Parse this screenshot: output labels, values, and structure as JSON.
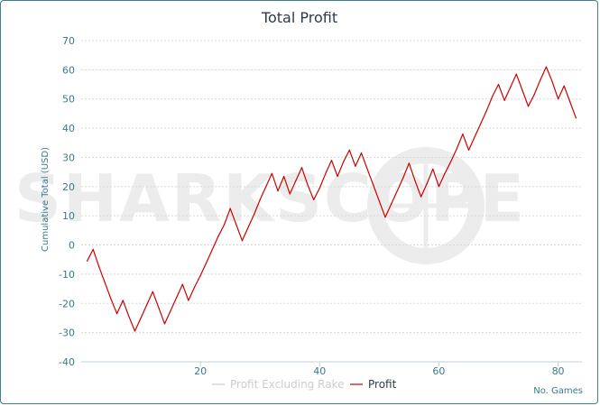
{
  "chart_data": {
    "type": "line",
    "title": "Total Profit",
    "ylabel": "Cumulative Total (USD)",
    "xlabel": "No. Games",
    "ylim": [
      -40,
      70
    ],
    "xlim": [
      0,
      84
    ],
    "yticks": [
      70,
      60,
      50,
      40,
      30,
      20,
      10,
      0,
      -10,
      -20,
      -30,
      -40
    ],
    "xticks": [
      20,
      40,
      60,
      80
    ],
    "grid": true,
    "legend_position": "bottom",
    "watermark": "SHARKSCOPE",
    "series": [
      {
        "name": "Profit Excluding Rake",
        "color": "#cccccc",
        "points": []
      },
      {
        "name": "Profit",
        "color": "#cc0000",
        "points": [
          [
            1,
            -5.5
          ],
          [
            2,
            -1.5
          ],
          [
            3,
            -7.5
          ],
          [
            4,
            -13
          ],
          [
            5,
            -18.5
          ],
          [
            6,
            -23.5
          ],
          [
            7,
            -19
          ],
          [
            8,
            -24.5
          ],
          [
            9,
            -29.5
          ],
          [
            10,
            -25
          ],
          [
            11,
            -20.5
          ],
          [
            12,
            -16
          ],
          [
            13,
            -21.5
          ],
          [
            14,
            -27
          ],
          [
            15,
            -22.5
          ],
          [
            16,
            -18
          ],
          [
            17,
            -13.5
          ],
          [
            18,
            -19
          ],
          [
            19,
            -14.5
          ],
          [
            20,
            -10.5
          ],
          [
            21,
            -6
          ],
          [
            22,
            -1.5
          ],
          [
            23,
            3
          ],
          [
            24,
            7
          ],
          [
            25,
            12.5
          ],
          [
            26,
            7
          ],
          [
            27,
            1.5
          ],
          [
            28,
            6
          ],
          [
            29,
            10.5
          ],
          [
            30,
            15.5
          ],
          [
            31,
            20
          ],
          [
            32,
            24.5
          ],
          [
            33,
            18.5
          ],
          [
            34,
            23.5
          ],
          [
            35,
            17.5
          ],
          [
            36,
            22
          ],
          [
            37,
            26.5
          ],
          [
            38,
            20.5
          ],
          [
            39,
            15.5
          ],
          [
            40,
            19.5
          ],
          [
            41,
            24.5
          ],
          [
            42,
            29
          ],
          [
            43,
            23.5
          ],
          [
            44,
            28.5
          ],
          [
            45,
            32.5
          ],
          [
            46,
            27
          ],
          [
            47,
            31.5
          ],
          [
            48,
            26
          ],
          [
            49,
            20.5
          ],
          [
            50,
            15
          ],
          [
            51,
            9.5
          ],
          [
            52,
            14
          ],
          [
            53,
            18.5
          ],
          [
            54,
            23
          ],
          [
            55,
            28
          ],
          [
            56,
            22
          ],
          [
            57,
            16.5
          ],
          [
            58,
            21
          ],
          [
            59,
            26
          ],
          [
            60,
            20
          ],
          [
            61,
            24.5
          ],
          [
            62,
            28.5
          ],
          [
            63,
            33
          ],
          [
            64,
            38
          ],
          [
            65,
            32.5
          ],
          [
            66,
            37
          ],
          [
            67,
            41.5
          ],
          [
            68,
            46
          ],
          [
            69,
            51
          ],
          [
            70,
            55
          ],
          [
            71,
            49.5
          ],
          [
            72,
            54
          ],
          [
            73,
            58.5
          ],
          [
            74,
            53
          ],
          [
            75,
            47.5
          ],
          [
            76,
            51.5
          ],
          [
            77,
            56.5
          ],
          [
            78,
            61
          ],
          [
            79,
            56
          ],
          [
            80,
            50
          ],
          [
            81,
            54.5
          ],
          [
            82,
            49
          ],
          [
            83,
            43.5
          ]
        ]
      }
    ]
  }
}
